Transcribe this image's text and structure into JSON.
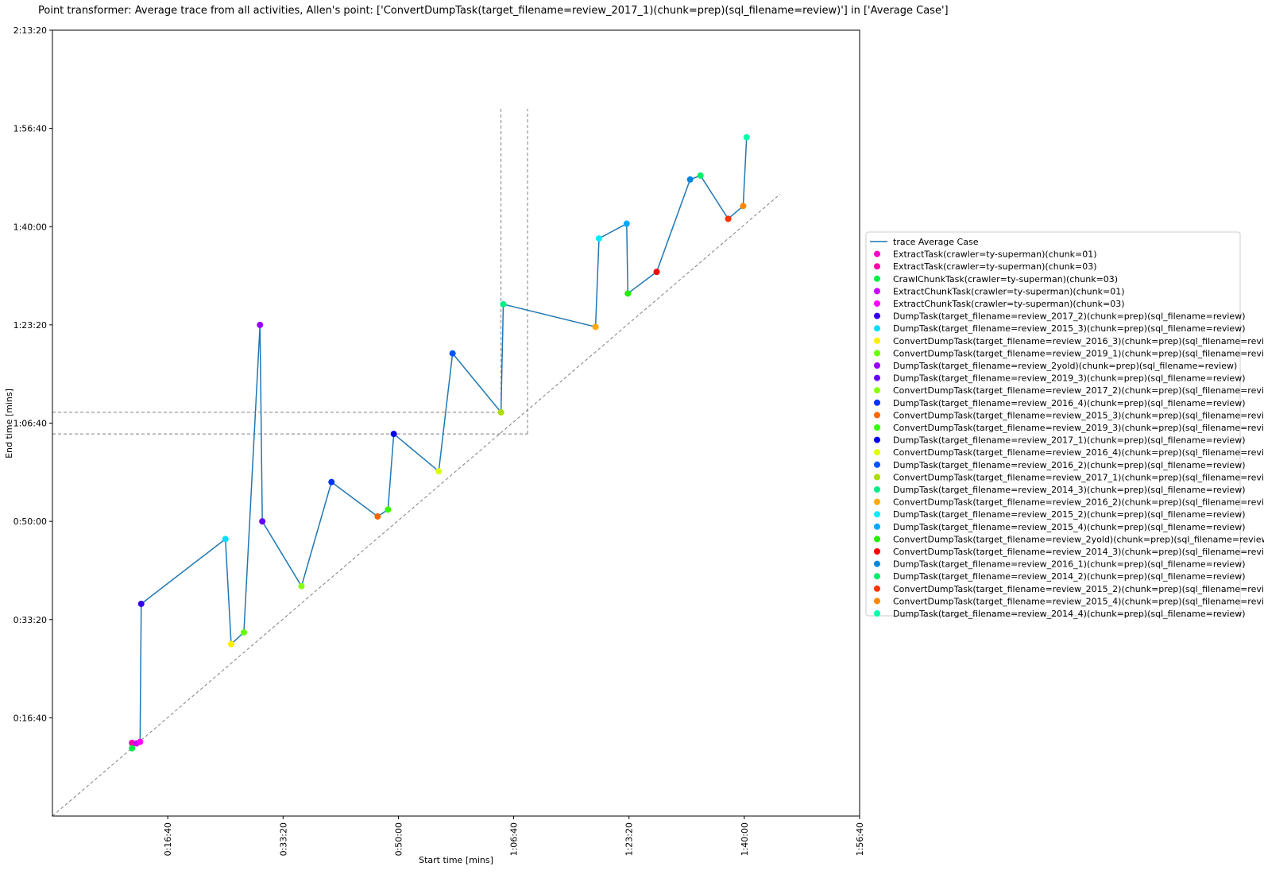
{
  "chart_data": {
    "type": "scatter",
    "title": "Point transformer: Average trace from all activities, Allen's point: ['ConvertDumpTask(target_filename=review_2017_1)(chunk=prep)(sql_filename=review)'] in ['Average Case']",
    "xlabel": "Start time [mins]",
    "ylabel": "End time [mins]",
    "xlim": [
      0,
      7000
    ],
    "ylim": [
      0,
      8000
    ],
    "x_ticks": [
      {
        "value": 1000,
        "label": "0:16:40"
      },
      {
        "value": 2000,
        "label": "0:33:20"
      },
      {
        "value": 3000,
        "label": "0:50:00"
      },
      {
        "value": 4000,
        "label": "1:06:40"
      },
      {
        "value": 5000,
        "label": "1:23:20"
      },
      {
        "value": 6000,
        "label": "1:40:00"
      },
      {
        "value": 7000,
        "label": "1:56:40"
      }
    ],
    "y_ticks": [
      {
        "value": 1000,
        "label": "0:16:40"
      },
      {
        "value": 2000,
        "label": "0:33:20"
      },
      {
        "value": 3000,
        "label": "0:50:00"
      },
      {
        "value": 4000,
        "label": "1:06:40"
      },
      {
        "value": 5000,
        "label": "1:23:20"
      },
      {
        "value": 6000,
        "label": "1:40:00"
      },
      {
        "value": 7000,
        "label": "1:56:40"
      },
      {
        "value": 8000,
        "label": "2:13:20"
      }
    ],
    "diagonal": {
      "from": [
        0,
        0
      ],
      "to": [
        6310,
        6330
      ]
    },
    "allen_point": {
      "x": 3890,
      "y": 4110,
      "x_guides": [
        3890,
        4120
      ],
      "y_guides": [
        4110,
        3890
      ],
      "guide_top": 7200
    },
    "trace_name": "trace Average Case",
    "trace_color": "#1f77b4",
    "legend_position": "center-right",
    "points": [
      {
        "name": "ExtractTask(crawler=ty-superman)(chunk=01)",
        "x": 690,
        "y": 745,
        "color": "#ff00cc"
      },
      {
        "name": "ExtractTask(crawler=ty-superman)(chunk=03)",
        "x": 695,
        "y": 735,
        "color": "#ff00aa"
      },
      {
        "name": "CrawlChunkTask(crawler=ty-superman)(chunk=03)",
        "x": 690,
        "y": 690,
        "color": "#00ee44"
      },
      {
        "name": "ExtractChunkTask(crawler=ty-superman)(chunk=01)",
        "x": 730,
        "y": 740,
        "color": "#cc00ff"
      },
      {
        "name": "ExtractChunkTask(crawler=ty-superman)(chunk=03)",
        "x": 760,
        "y": 755,
        "color": "#ff00ff"
      },
      {
        "name": "DumpTask(target_filename=review_2017_2)(chunk=prep)(sql_filename=review)",
        "x": 770,
        "y": 2160,
        "color": "#3300ee"
      },
      {
        "name": "DumpTask(target_filename=review_2015_3)(chunk=prep)(sql_filename=review)",
        "x": 1500,
        "y": 2820,
        "color": "#00ddff"
      },
      {
        "name": "ConvertDumpTask(target_filename=review_2016_3)(chunk=prep)(sql_filename=review)",
        "x": 1550,
        "y": 1750,
        "color": "#ffee00"
      },
      {
        "name": "ConvertDumpTask(target_filename=review_2019_1)(chunk=prep)(sql_filename=review)",
        "x": 1660,
        "y": 1870,
        "color": "#66ff00"
      },
      {
        "name": "DumpTask(target_filename=review_2yold)(chunk=prep)(sql_filename=review)",
        "x": 1800,
        "y": 5000,
        "color": "#9900ff"
      },
      {
        "name": "DumpTask(target_filename=review_2019_3)(chunk=prep)(sql_filename=review)",
        "x": 1820,
        "y": 3000,
        "color": "#6600ff"
      },
      {
        "name": "ConvertDumpTask(target_filename=review_2017_2)(chunk=prep)(sql_filename=review)",
        "x": 2160,
        "y": 2340,
        "color": "#88ff00"
      },
      {
        "name": "DumpTask(target_filename=review_2016_4)(chunk=prep)(sql_filename=review)",
        "x": 2420,
        "y": 3400,
        "color": "#0033ff"
      },
      {
        "name": "ConvertDumpTask(target_filename=review_2015_3)(chunk=prep)(sql_filename=review)",
        "x": 2820,
        "y": 3050,
        "color": "#ff6600"
      },
      {
        "name": "ConvertDumpTask(target_filename=review_2019_3)(chunk=prep)(sql_filename=review)",
        "x": 2910,
        "y": 3120,
        "color": "#33ff00"
      },
      {
        "name": "DumpTask(target_filename=review_2017_1)(chunk=prep)(sql_filename=review)",
        "x": 2960,
        "y": 3890,
        "color": "#0000ee"
      },
      {
        "name": "ConvertDumpTask(target_filename=review_2016_4)(chunk=prep)(sql_filename=review)",
        "x": 3350,
        "y": 3510,
        "color": "#ddff00"
      },
      {
        "name": "DumpTask(target_filename=review_2016_2)(chunk=prep)(sql_filename=review)",
        "x": 3470,
        "y": 4710,
        "color": "#0055ff"
      },
      {
        "name": "ConvertDumpTask(target_filename=review_2017_1)(chunk=prep)(sql_filename=review)",
        "x": 3890,
        "y": 4110,
        "color": "#aadd00"
      },
      {
        "name": "DumpTask(target_filename=review_2014_3)(chunk=prep)(sql_filename=review)",
        "x": 3910,
        "y": 5210,
        "color": "#00ee88"
      },
      {
        "name": "ConvertDumpTask(target_filename=review_2016_2)(chunk=prep)(sql_filename=review)",
        "x": 4710,
        "y": 4980,
        "color": "#ffaa00"
      },
      {
        "name": "DumpTask(target_filename=review_2015_2)(chunk=prep)(sql_filename=review)",
        "x": 4740,
        "y": 5880,
        "color": "#00eeff"
      },
      {
        "name": "DumpTask(target_filename=review_2015_4)(chunk=prep)(sql_filename=review)",
        "x": 4980,
        "y": 6030,
        "color": "#00aaff"
      },
      {
        "name": "ConvertDumpTask(target_filename=review_2yold)(chunk=prep)(sql_filename=review)",
        "x": 4990,
        "y": 5320,
        "color": "#22ee00"
      },
      {
        "name": "ConvertDumpTask(target_filename=review_2014_3)(chunk=prep)(sql_filename=review)",
        "x": 5240,
        "y": 5540,
        "color": "#ff0000"
      },
      {
        "name": "DumpTask(target_filename=review_2016_1)(chunk=prep)(sql_filename=review)",
        "x": 5530,
        "y": 6480,
        "color": "#0088dd"
      },
      {
        "name": "DumpTask(target_filename=review_2014_2)(chunk=prep)(sql_filename=review)",
        "x": 5620,
        "y": 6520,
        "color": "#00ee66"
      },
      {
        "name": "ConvertDumpTask(target_filename=review_2015_2)(chunk=prep)(sql_filename=review)",
        "x": 5860,
        "y": 6080,
        "color": "#ff3300"
      },
      {
        "name": "ConvertDumpTask(target_filename=review_2015_4)(chunk=prep)(sql_filename=review)",
        "x": 5990,
        "y": 6210,
        "color": "#ff8800"
      },
      {
        "name": "DumpTask(target_filename=review_2014_4)(chunk=prep)(sql_filename=review)",
        "x": 6020,
        "y": 6910,
        "color": "#00ffaa"
      }
    ]
  }
}
